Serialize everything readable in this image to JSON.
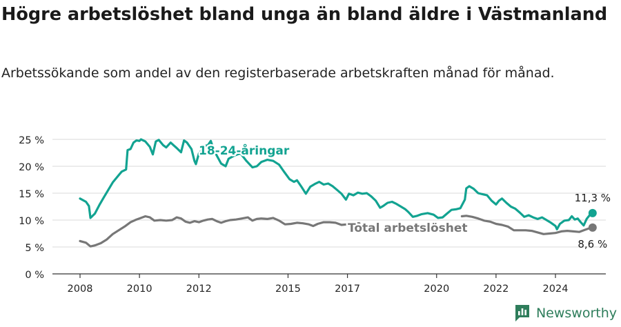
{
  "title": "Högre arbetslöshet bland unga än bland äldre i Västmanland",
  "subtitle": "Arbetssökande som andel av den registerbaserade arbetskraften månad för månad.",
  "brand": "Newsworthy",
  "colors": {
    "youth": "#12a391",
    "total": "#777777",
    "grid": "#d8d8d8",
    "axis": "#333333",
    "brand": "#2e7d5b"
  },
  "chart_data": {
    "type": "line",
    "ylim": [
      0,
      25
    ],
    "xlim": [
      2007.5,
      2025.2
    ],
    "grid": true,
    "y_ticks": [
      {
        "value": 0,
        "label": "0 %"
      },
      {
        "value": 5,
        "label": "5 %"
      },
      {
        "value": 10,
        "label": "10 %"
      },
      {
        "value": 15,
        "label": "15 %"
      },
      {
        "value": 20,
        "label": "20 %"
      },
      {
        "value": 25,
        "label": "25 %"
      }
    ],
    "x_ticks": [
      {
        "value": 2008,
        "label": "2008"
      },
      {
        "value": 2010,
        "label": "2010"
      },
      {
        "value": 2012,
        "label": "2012"
      },
      {
        "value": 2015,
        "label": "2015"
      },
      {
        "value": 2017,
        "label": "2017"
      },
      {
        "value": 2020,
        "label": "2020"
      },
      {
        "value": 2022,
        "label": "2022"
      },
      {
        "value": 2024,
        "label": "2024"
      }
    ],
    "series": [
      {
        "name": "18-24-åringar",
        "color": "#12a391",
        "end_label": "11,3 %",
        "points": [
          [
            2008.0,
            14.0
          ],
          [
            2008.2,
            13.4
          ],
          [
            2008.3,
            12.6
          ],
          [
            2008.35,
            10.4
          ],
          [
            2008.5,
            11.2
          ],
          [
            2008.65,
            12.8
          ],
          [
            2008.8,
            14.2
          ],
          [
            2008.95,
            15.6
          ],
          [
            2009.1,
            17.0
          ],
          [
            2009.25,
            18.0
          ],
          [
            2009.4,
            19.0
          ],
          [
            2009.55,
            19.4
          ],
          [
            2009.6,
            23.0
          ],
          [
            2009.7,
            23.2
          ],
          [
            2009.8,
            24.4
          ],
          [
            2009.9,
            24.8
          ],
          [
            2010.0,
            24.7
          ],
          [
            2010.05,
            25.0
          ],
          [
            2010.2,
            24.6
          ],
          [
            2010.35,
            23.6
          ],
          [
            2010.45,
            22.2
          ],
          [
            2010.55,
            24.6
          ],
          [
            2010.65,
            24.9
          ],
          [
            2010.8,
            23.9
          ],
          [
            2010.9,
            23.5
          ],
          [
            2011.05,
            24.4
          ],
          [
            2011.25,
            23.4
          ],
          [
            2011.4,
            22.6
          ],
          [
            2011.5,
            24.8
          ],
          [
            2011.6,
            24.4
          ],
          [
            2011.75,
            23.2
          ],
          [
            2011.85,
            21.0
          ],
          [
            2011.9,
            20.4
          ],
          [
            2012.0,
            22.4
          ],
          [
            2012.1,
            23.0
          ],
          [
            2012.2,
            23.8
          ],
          [
            2012.3,
            23.9
          ],
          [
            2012.4,
            24.7
          ],
          [
            2012.5,
            23.0
          ],
          [
            2012.6,
            22.0
          ],
          [
            2012.75,
            20.5
          ],
          [
            2012.9,
            20.0
          ],
          [
            2013.0,
            21.4
          ],
          [
            2013.2,
            22.0
          ],
          [
            2013.4,
            22.4
          ],
          [
            2013.6,
            21.0
          ],
          [
            2013.8,
            19.8
          ],
          [
            2013.95,
            20.0
          ],
          [
            2014.1,
            20.8
          ],
          [
            2014.3,
            21.2
          ],
          [
            2014.5,
            21.0
          ],
          [
            2014.7,
            20.3
          ],
          [
            2014.85,
            19.1
          ],
          [
            2015.05,
            17.6
          ],
          [
            2015.2,
            17.1
          ],
          [
            2015.3,
            17.4
          ],
          [
            2015.45,
            16.2
          ],
          [
            2015.6,
            14.9
          ],
          [
            2015.75,
            16.2
          ],
          [
            2015.9,
            16.7
          ],
          [
            2016.05,
            17.1
          ],
          [
            2016.2,
            16.6
          ],
          [
            2016.35,
            16.8
          ],
          [
            2016.5,
            16.3
          ],
          [
            2016.65,
            15.6
          ],
          [
            2016.8,
            14.9
          ],
          [
            2016.95,
            13.8
          ],
          [
            2017.05,
            14.9
          ],
          [
            2017.2,
            14.6
          ],
          [
            2017.35,
            15.1
          ],
          [
            2017.5,
            14.9
          ],
          [
            2017.65,
            15.0
          ],
          [
            2017.8,
            14.4
          ],
          [
            2017.95,
            13.6
          ],
          [
            2018.1,
            12.3
          ],
          [
            2018.2,
            12.6
          ],
          [
            2018.35,
            13.2
          ],
          [
            2018.5,
            13.4
          ],
          [
            2018.65,
            13.0
          ],
          [
            2018.8,
            12.5
          ],
          [
            2018.95,
            12.0
          ],
          [
            2019.05,
            11.5
          ],
          [
            2019.2,
            10.6
          ],
          [
            2019.35,
            10.8
          ],
          [
            2019.5,
            11.1
          ],
          [
            2019.7,
            11.3
          ],
          [
            2019.9,
            11.0
          ],
          [
            2020.05,
            10.4
          ],
          [
            2020.2,
            10.5
          ],
          [
            2020.35,
            11.2
          ],
          [
            2020.5,
            11.9
          ],
          [
            2020.65,
            12.0
          ],
          [
            2020.8,
            12.2
          ],
          [
            2020.95,
            13.8
          ],
          [
            2021.0,
            15.9
          ],
          [
            2021.1,
            16.3
          ],
          [
            2021.25,
            15.8
          ],
          [
            2021.4,
            15.0
          ],
          [
            2021.55,
            14.8
          ],
          [
            2021.7,
            14.6
          ],
          [
            2021.85,
            13.6
          ],
          [
            2022.0,
            12.9
          ],
          [
            2022.1,
            13.6
          ],
          [
            2022.2,
            14.0
          ],
          [
            2022.35,
            13.2
          ],
          [
            2022.5,
            12.5
          ],
          [
            2022.65,
            12.1
          ],
          [
            2022.8,
            11.4
          ],
          [
            2022.95,
            10.6
          ],
          [
            2023.1,
            10.9
          ],
          [
            2023.25,
            10.5
          ],
          [
            2023.4,
            10.2
          ],
          [
            2023.55,
            10.5
          ],
          [
            2023.7,
            10.0
          ],
          [
            2023.85,
            9.5
          ],
          [
            2024.0,
            8.9
          ],
          [
            2024.05,
            8.3
          ],
          [
            2024.15,
            9.3
          ],
          [
            2024.3,
            9.9
          ],
          [
            2024.45,
            10.0
          ],
          [
            2024.55,
            10.7
          ],
          [
            2024.65,
            10.1
          ],
          [
            2024.75,
            10.3
          ],
          [
            2024.85,
            9.6
          ],
          [
            2024.95,
            9.0
          ],
          [
            2025.05,
            10.2
          ],
          [
            2025.15,
            10.9
          ],
          [
            2025.25,
            11.3
          ]
        ]
      },
      {
        "name": "Total arbetslöshet",
        "color": "#777777",
        "end_label": "8,6 %",
        "points": [
          [
            2008.0,
            6.1
          ],
          [
            2008.2,
            5.8
          ],
          [
            2008.35,
            5.1
          ],
          [
            2008.5,
            5.3
          ],
          [
            2008.7,
            5.7
          ],
          [
            2008.9,
            6.4
          ],
          [
            2009.1,
            7.4
          ],
          [
            2009.3,
            8.1
          ],
          [
            2009.5,
            8.8
          ],
          [
            2009.7,
            9.6
          ],
          [
            2009.9,
            10.1
          ],
          [
            2010.05,
            10.4
          ],
          [
            2010.2,
            10.7
          ],
          [
            2010.35,
            10.5
          ],
          [
            2010.5,
            9.9
          ],
          [
            2010.7,
            10.0
          ],
          [
            2010.9,
            9.9
          ],
          [
            2011.1,
            10.0
          ],
          [
            2011.25,
            10.5
          ],
          [
            2011.4,
            10.3
          ],
          [
            2011.55,
            9.7
          ],
          [
            2011.7,
            9.5
          ],
          [
            2011.85,
            9.8
          ],
          [
            2012.0,
            9.6
          ],
          [
            2012.15,
            9.9
          ],
          [
            2012.3,
            10.1
          ],
          [
            2012.45,
            10.2
          ],
          [
            2012.6,
            9.8
          ],
          [
            2012.75,
            9.5
          ],
          [
            2012.9,
            9.8
          ],
          [
            2013.05,
            10.0
          ],
          [
            2013.25,
            10.1
          ],
          [
            2013.45,
            10.3
          ],
          [
            2013.65,
            10.5
          ],
          [
            2013.8,
            9.9
          ],
          [
            2013.95,
            10.2
          ],
          [
            2014.1,
            10.3
          ],
          [
            2014.3,
            10.2
          ],
          [
            2014.5,
            10.4
          ],
          [
            2014.7,
            9.9
          ],
          [
            2014.9,
            9.2
          ],
          [
            2015.1,
            9.3
          ],
          [
            2015.3,
            9.5
          ],
          [
            2015.5,
            9.4
          ],
          [
            2015.7,
            9.2
          ],
          [
            2015.85,
            8.9
          ],
          [
            2016.0,
            9.3
          ],
          [
            2016.2,
            9.6
          ],
          [
            2016.4,
            9.6
          ],
          [
            2016.6,
            9.5
          ],
          [
            2016.8,
            9.1
          ],
          [
            2017.0,
            9.2
          ],
          [
            2017.2,
            9.4
          ],
          [
            2017.4,
            9.4
          ],
          null,
          [
            2020.85,
            10.7
          ],
          [
            2021.0,
            10.8
          ],
          [
            2021.2,
            10.6
          ],
          [
            2021.4,
            10.3
          ],
          [
            2021.6,
            9.9
          ],
          [
            2021.8,
            9.7
          ],
          [
            2022.0,
            9.3
          ],
          [
            2022.2,
            9.1
          ],
          [
            2022.4,
            8.8
          ],
          [
            2022.6,
            8.1
          ],
          [
            2022.8,
            8.1
          ],
          [
            2023.0,
            8.1
          ],
          [
            2023.2,
            8.0
          ],
          [
            2023.4,
            7.7
          ],
          [
            2023.6,
            7.4
          ],
          [
            2023.8,
            7.5
          ],
          [
            2024.0,
            7.6
          ],
          [
            2024.2,
            7.9
          ],
          [
            2024.4,
            8.0
          ],
          [
            2024.6,
            7.9
          ],
          [
            2024.8,
            7.8
          ],
          [
            2025.0,
            8.2
          ],
          [
            2025.15,
            8.5
          ],
          [
            2025.25,
            8.6
          ]
        ]
      }
    ]
  }
}
